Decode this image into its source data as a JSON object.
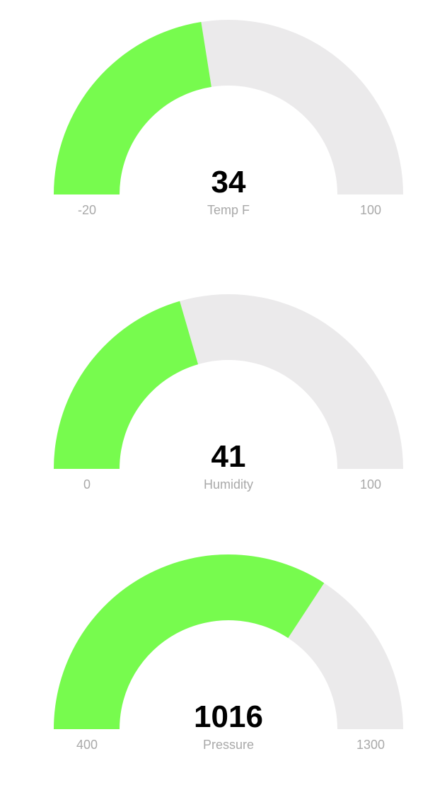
{
  "colors": {
    "fill": "#77fb4e",
    "track": "#ebeaeb",
    "value_text": "#000000",
    "label_text": "#a9a9a9"
  },
  "chart_data": [
    {
      "type": "gauge",
      "label": "Temp F",
      "value": 34,
      "value_text": "34",
      "min": -20,
      "max": 100,
      "min_text": "-20",
      "max_text": "100"
    },
    {
      "type": "gauge",
      "label": "Humidity",
      "value": 41,
      "value_text": "41",
      "min": 0,
      "max": 100,
      "min_text": "0",
      "max_text": "100"
    },
    {
      "type": "gauge",
      "label": "Pressure",
      "value": 1016,
      "value_text": "1016",
      "min": 400,
      "max": 1300,
      "min_text": "400",
      "max_text": "1300"
    }
  ]
}
